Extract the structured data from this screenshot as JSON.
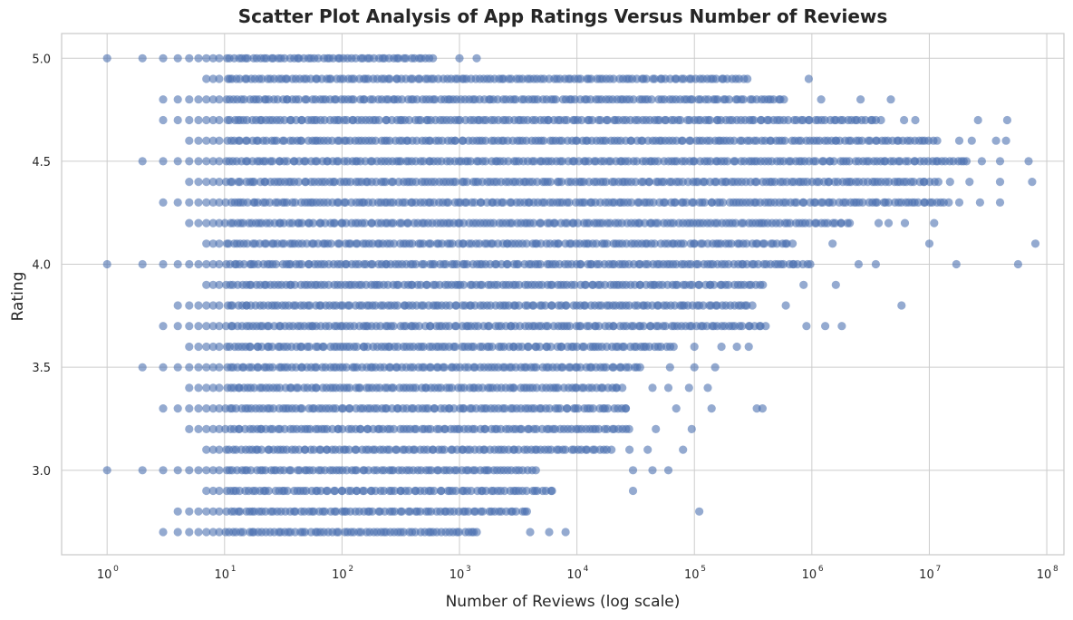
{
  "chart_data": {
    "type": "scatter",
    "title": "Scatter Plot Analysis of App Ratings Versus Number of Reviews",
    "xlabel": "Number of Reviews (log scale)",
    "ylabel": "Rating",
    "xscale": "log",
    "xlim": [
      0.41,
      140000000
    ],
    "ylim": [
      2.59,
      5.12
    ],
    "grid": true,
    "legend": "none",
    "x_tick_values": [
      1,
      10,
      100,
      1000,
      10000,
      100000,
      1000000,
      10000000,
      100000000
    ],
    "x_tick_labels": [
      {
        "base": "10",
        "exp": "0"
      },
      {
        "base": "10",
        "exp": "1"
      },
      {
        "base": "10",
        "exp": "2"
      },
      {
        "base": "10",
        "exp": "3"
      },
      {
        "base": "10",
        "exp": "4"
      },
      {
        "base": "10",
        "exp": "5"
      },
      {
        "base": "10",
        "exp": "6"
      },
      {
        "base": "10",
        "exp": "7"
      },
      {
        "base": "10",
        "exp": "8"
      }
    ],
    "y_tick_values": [
      3.0,
      3.5,
      4.0,
      4.5,
      5.0
    ],
    "y_tick_labels": [
      "3.0",
      "3.5",
      "4.0",
      "4.5",
      "5.0"
    ],
    "marker_color": "#4c72b0",
    "marker_alpha": 0.6,
    "series": [
      {
        "rows": [
          {
            "rating": 5.0,
            "min": 1,
            "max": 620,
            "extra": [
              1000,
              1400
            ]
          },
          {
            "rating": 4.9,
            "min": 7,
            "max": 290000,
            "extra": [
              940000
            ]
          },
          {
            "rating": 4.8,
            "min": 3,
            "max": 620000,
            "extra": [
              1200000,
              2600000,
              4700000
            ]
          },
          {
            "rating": 4.7,
            "min": 3,
            "max": 4000000,
            "extra": [
              6100000,
              7600000,
              26000000,
              46000000
            ]
          },
          {
            "rating": 4.6,
            "min": 5,
            "max": 12000000,
            "extra": [
              18000000,
              23000000,
              37000000,
              45000000
            ]
          },
          {
            "rating": 4.5,
            "min": 2,
            "max": 22000000,
            "extra": [
              28000000,
              40000000,
              70000000
            ]
          },
          {
            "rating": 4.4,
            "min": 5,
            "max": 12000000,
            "extra": [
              15000000,
              22000000,
              40000000,
              75000000
            ]
          },
          {
            "rating": 4.3,
            "min": 3,
            "max": 15000000,
            "extra": [
              18000000,
              27000000,
              40000000
            ]
          },
          {
            "rating": 4.2,
            "min": 5,
            "max": 2200000,
            "extra": [
              3700000,
              4500000,
              6200000,
              11000000
            ]
          },
          {
            "rating": 4.1,
            "min": 7,
            "max": 700000,
            "extra": [
              1500000,
              10000000,
              80000000
            ]
          },
          {
            "rating": 4.0,
            "min": 1,
            "max": 1000000,
            "extra": [
              2500000,
              3500000,
              17000000,
              57000000
            ]
          },
          {
            "rating": 3.9,
            "min": 7,
            "max": 400000,
            "extra": [
              850000,
              1600000
            ]
          },
          {
            "rating": 3.8,
            "min": 4,
            "max": 320000,
            "extra": [
              600000,
              5800000
            ]
          },
          {
            "rating": 3.7,
            "min": 3,
            "max": 420000,
            "extra": [
              900000,
              1300000,
              1800000
            ]
          },
          {
            "rating": 3.6,
            "min": 5,
            "max": 68000,
            "extra": [
              100000,
              170000,
              230000,
              290000
            ]
          },
          {
            "rating": 3.5,
            "min": 2,
            "max": 36000,
            "extra": [
              62000,
              100000,
              150000
            ]
          },
          {
            "rating": 3.4,
            "min": 5,
            "max": 25000,
            "extra": [
              44000,
              60000,
              90000,
              130000
            ]
          },
          {
            "rating": 3.3,
            "min": 3,
            "max": 28000,
            "extra": [
              70000,
              140000,
              340000,
              380000
            ]
          },
          {
            "rating": 3.2,
            "min": 5,
            "max": 29000,
            "extra": [
              47000,
              95000
            ]
          },
          {
            "rating": 3.1,
            "min": 7,
            "max": 20000,
            "extra": [
              28000,
              40000,
              80000
            ]
          },
          {
            "rating": 3.0,
            "min": 1,
            "max": 4500,
            "extra": [
              30000,
              44000,
              60000
            ]
          },
          {
            "rating": 2.9,
            "min": 7,
            "max": 6500,
            "extra": [
              30000
            ]
          },
          {
            "rating": 2.8,
            "min": 4,
            "max": 4000,
            "extra": [
              110000
            ]
          },
          {
            "rating": 2.7,
            "min": 3,
            "max": 1500,
            "extra": [
              4000,
              5800,
              8000
            ]
          }
        ]
      }
    ]
  }
}
